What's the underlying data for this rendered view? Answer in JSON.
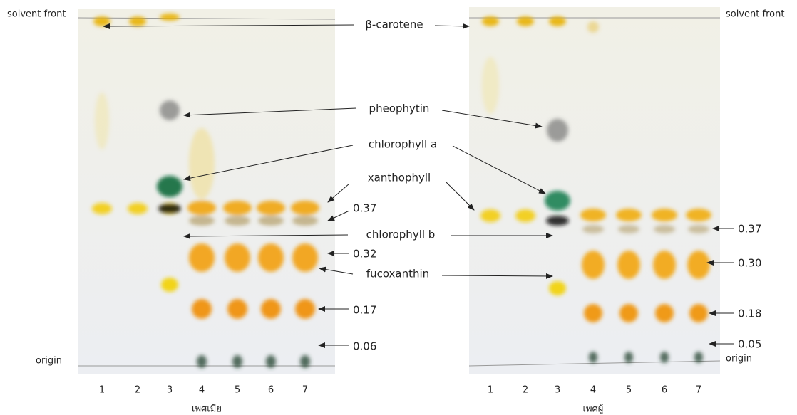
{
  "left_plate": {
    "top_label": "solvent front",
    "bottom_label": "origin",
    "lanes": [
      1,
      2,
      3,
      4,
      5,
      6,
      7
    ],
    "caption": "เพศเมีย",
    "rf_labels": [
      "0.37",
      "0.32",
      "0.17",
      "0.06"
    ]
  },
  "right_plate": {
    "top_label": "solvent front",
    "bottom_label": "origin",
    "lanes": [
      1,
      2,
      3,
      4,
      5,
      6,
      7
    ],
    "caption": "เพศผู้",
    "rf_labels": [
      "0.37",
      "0.30",
      "0.18",
      "0.05"
    ]
  },
  "compounds": [
    "β-carotene",
    "pheophytin",
    "chlorophyll a",
    "xanthophyll",
    "chlorophyll b",
    "fucoxanthin"
  ]
}
